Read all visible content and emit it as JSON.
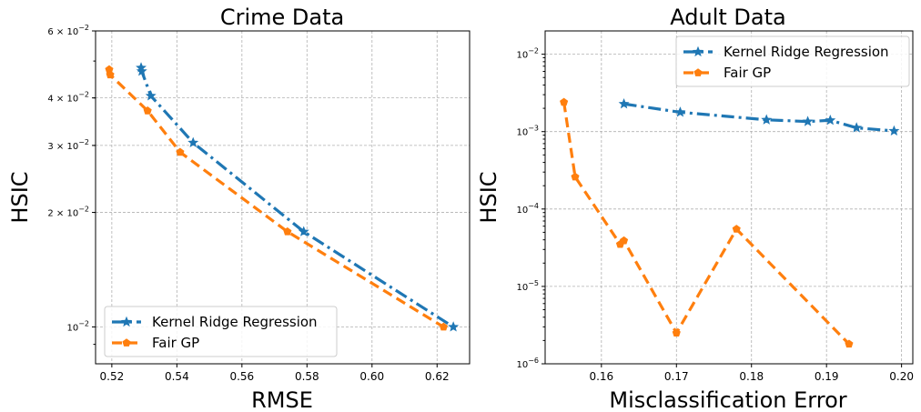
{
  "chart_data": [
    {
      "type": "line",
      "title": "Crime Data",
      "xlabel": "RMSE",
      "ylabel": "HSIC",
      "xscale": "linear",
      "yscale": "log",
      "xlim": [
        0.515,
        0.63
      ],
      "ylim": [
        0.008,
        0.06
      ],
      "grid": true,
      "legend_loc": "lower-left",
      "x_ticks": [
        0.52,
        0.54,
        0.56,
        0.58,
        0.6,
        0.62
      ],
      "x_tick_labels": [
        "0.52",
        "0.54",
        "0.56",
        "0.58",
        "0.60",
        "0.62"
      ],
      "y_ticks": [
        {
          "value": 0.01,
          "mantissa": "10",
          "exp": "−2"
        },
        {
          "value": 0.02,
          "mantissa": "2 × 10",
          "exp": "−2"
        },
        {
          "value": 0.03,
          "mantissa": "3 × 10",
          "exp": "−2"
        },
        {
          "value": 0.04,
          "mantissa": "4 × 10",
          "exp": "−2"
        },
        {
          "value": 0.06,
          "mantissa": "6 × 10",
          "exp": "−2"
        }
      ],
      "series": [
        {
          "name": "Kernel Ridge Regression",
          "color": "#1f77b4",
          "line_style": "dashdot",
          "marker": "star",
          "x": [
            0.529,
            0.5292,
            0.532,
            0.545,
            0.579,
            0.625
          ],
          "y": [
            0.048,
            0.047,
            0.0405,
            0.0305,
            0.0178,
            0.01
          ]
        },
        {
          "name": "Fair GP",
          "color": "#ff7f0e",
          "line_style": "dashed",
          "marker": "pentagon",
          "x": [
            0.5192,
            0.5195,
            0.531,
            0.541,
            0.574,
            0.622
          ],
          "y": [
            0.0475,
            0.046,
            0.037,
            0.0288,
            0.0178,
            0.01
          ]
        }
      ]
    },
    {
      "type": "line",
      "title": "Adult Data",
      "xlabel": "Misclassification Error",
      "ylabel": "HSIC",
      "xscale": "linear",
      "yscale": "log",
      "xlim": [
        0.1525,
        0.2015
      ],
      "ylim": [
        1e-06,
        0.02
      ],
      "grid": true,
      "legend_loc": "upper-right",
      "x_ticks": [
        0.16,
        0.17,
        0.18,
        0.19,
        0.2
      ],
      "x_tick_labels": [
        "0.16",
        "0.17",
        "0.18",
        "0.19",
        "0.20"
      ],
      "y_ticks": [
        {
          "value": 1e-06,
          "mantissa": "10",
          "exp": "−6"
        },
        {
          "value": 1e-05,
          "mantissa": "10",
          "exp": "−5"
        },
        {
          "value": 0.0001,
          "mantissa": "10",
          "exp": "−4"
        },
        {
          "value": 0.001,
          "mantissa": "10",
          "exp": "−3"
        },
        {
          "value": 0.01,
          "mantissa": "10",
          "exp": "−2"
        }
      ],
      "series": [
        {
          "name": "Kernel Ridge Regression",
          "color": "#1f77b4",
          "line_style": "dashdot",
          "marker": "star",
          "x": [
            0.163,
            0.1705,
            0.182,
            0.1875,
            0.1905,
            0.194,
            0.199
          ],
          "y": [
            0.00228,
            0.00178,
            0.00142,
            0.00135,
            0.0014,
            0.00112,
            0.00102
          ]
        },
        {
          "name": "Fair GP",
          "color": "#ff7f0e",
          "line_style": "dashed",
          "marker": "pentagon",
          "x": [
            0.155,
            0.1565,
            0.1625,
            0.163,
            0.17,
            0.178,
            0.193
          ],
          "y": [
            0.0024,
            0.00026,
            3.5e-05,
            3.9e-05,
            2.5e-06,
            5.5e-05,
            1.8e-06
          ]
        }
      ]
    }
  ]
}
